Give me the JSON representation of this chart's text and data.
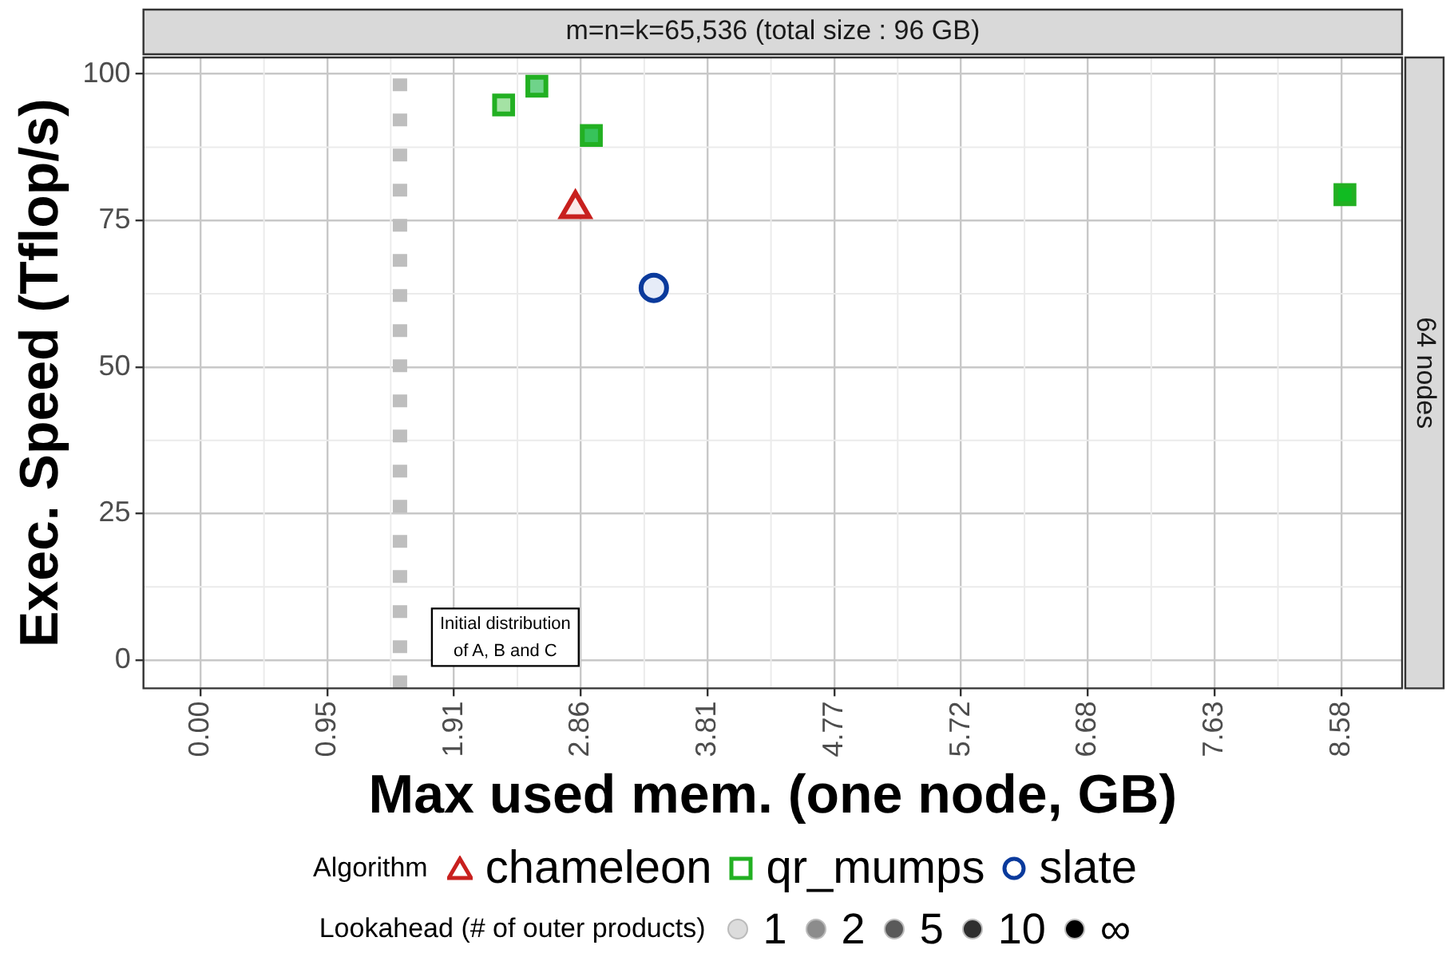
{
  "chart_data": {
    "type": "scatter",
    "title": "m=n=k=65,536 (total size : 96 GB)",
    "subtitle": "64 nodes",
    "xlabel": "Max used mem. (one node, GB)",
    "ylabel": "Exec. Speed (Tflop/s)",
    "legend_title": "Algorithm",
    "xlim": [
      -0.43,
      9.04
    ],
    "ylim": [
      -4.8,
      102.8
    ],
    "xticks": [
      {
        "value": 0,
        "label": "0.00"
      },
      {
        "value": 0.954,
        "label": "0.95"
      },
      {
        "value": 1.907,
        "label": "1.91"
      },
      {
        "value": 2.861,
        "label": "2.86"
      },
      {
        "value": 3.815,
        "label": "3.81"
      },
      {
        "value": 4.768,
        "label": "4.77"
      },
      {
        "value": 5.722,
        "label": "5.72"
      },
      {
        "value": 6.676,
        "label": "6.68"
      },
      {
        "value": 7.629,
        "label": "7.63"
      },
      {
        "value": 8.583,
        "label": "8.58"
      }
    ],
    "yticks": [
      0,
      25,
      50,
      75,
      100
    ],
    "grid": true,
    "legend": "bottom",
    "series": [
      {
        "name": "chameleon",
        "color": "#c8201e",
        "marker": "triangle",
        "x": [
          2.82
        ],
        "values": [
          77
        ],
        "colors": [
          "#fbe9e9"
        ]
      },
      {
        "name": "qr_mumps",
        "color": "#22b022",
        "marker": "square",
        "x": [
          2.28,
          2.53,
          2.94,
          8.61
        ],
        "values": [
          94.7,
          97.9,
          89.5,
          79.4
        ],
        "colors": [
          "#a4e2a4",
          "#6fd38a",
          "#37c35a",
          "#11bb22"
        ]
      },
      {
        "name": "slate",
        "color": "#0a3a9c",
        "marker": "circle",
        "x": [
          3.41
        ],
        "values": [
          63.5
        ],
        "colors": [
          "#e6ecf8"
        ]
      },
      {
        "name": "1",
        "color": "#dcdcdc",
        "marker": "circle"
      },
      {
        "name": "2",
        "color": "#8c8c8c",
        "marker": "circle"
      },
      {
        "name": "5",
        "color": "#5a5a5a",
        "marker": "circle"
      },
      {
        "name": "10",
        "color": "#2f2f2f",
        "marker": "circle"
      },
      {
        "name": "∞",
        "color": "#000000",
        "marker": "circle"
      }
    ],
    "ref_lines": [
      {
        "axis": "x",
        "value": 1.5,
        "label": "Initial distribution\nof A, B and C",
        "color": "#bebebe",
        "line_style": "dashed"
      }
    ],
    "annotations": [
      "Lookahead (# of outer products)"
    ]
  }
}
